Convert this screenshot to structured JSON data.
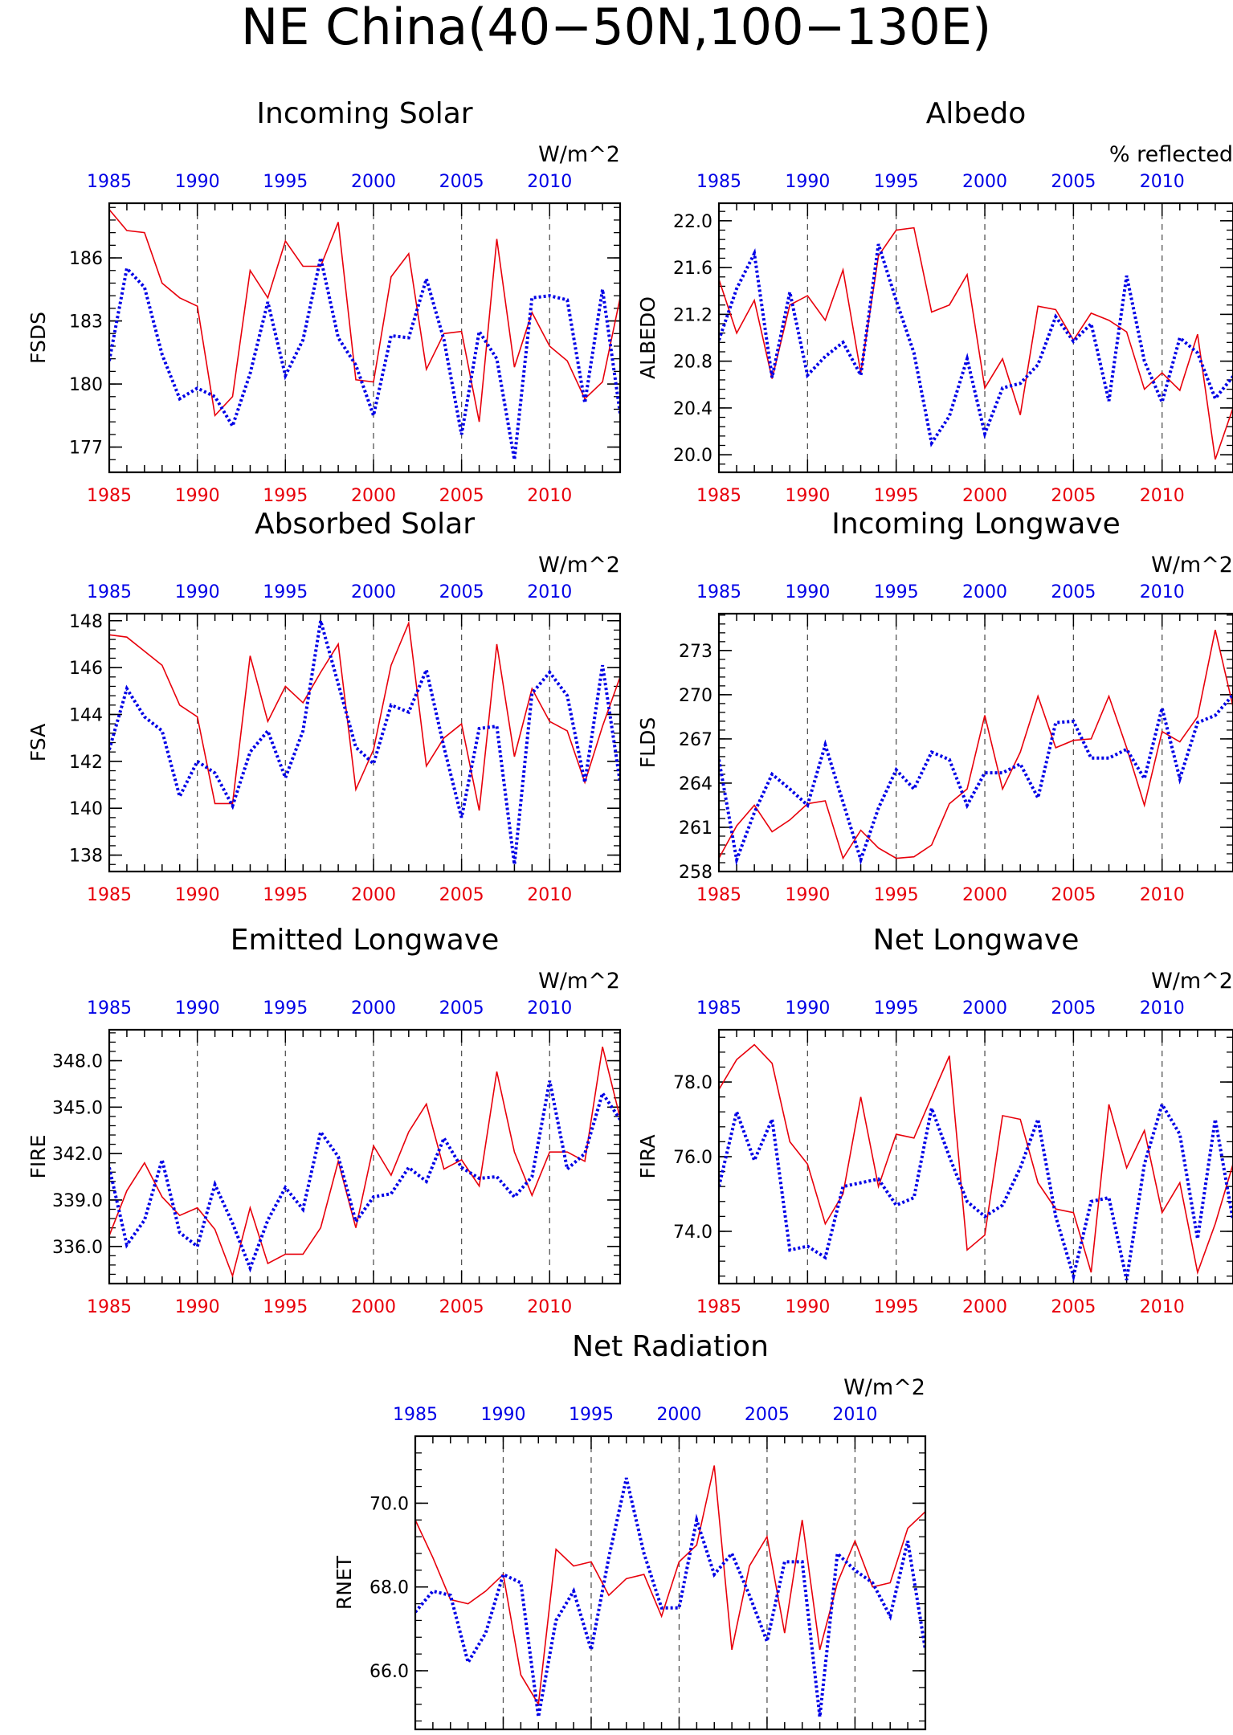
{
  "figure": {
    "title": "NE China(40−50N,100−130E)"
  },
  "colors": {
    "red_series": "#e8000b",
    "blue_series": "#0000e6",
    "axis": "#000000"
  },
  "chart_data": [
    {
      "type": "line",
      "title": "Incoming Solar",
      "ylabel": "FSDS",
      "units": "W/m^2",
      "ylim": [
        175.8,
        188.6
      ],
      "yticks": [
        177,
        180,
        183,
        186
      ],
      "ytick_labels": [
        "177",
        "180",
        "183",
        "186"
      ],
      "xlim": [
        1985,
        2014
      ],
      "xticks": [
        1985,
        1990,
        1995,
        2000,
        2005,
        2010
      ],
      "xtick_labels": [
        "1985",
        "1990",
        "1995",
        "2000",
        "2005",
        "2010"
      ],
      "grid": "vertical dashed at 5-year ticks",
      "x": [
        1985,
        1986,
        1987,
        1988,
        1989,
        1990,
        1991,
        1992,
        1993,
        1994,
        1995,
        1996,
        1997,
        1998,
        1999,
        2000,
        2001,
        2002,
        2003,
        2004,
        2005,
        2006,
        2007,
        2008,
        2009,
        2010,
        2011,
        2012,
        2013,
        2014
      ],
      "series": [
        {
          "values": [
            188.3,
            187.3,
            187.2,
            184.8,
            184.1,
            183.7,
            178.5,
            179.4,
            185.4,
            184.1,
            186.8,
            185.6,
            185.6,
            187.7,
            180.2,
            180.1,
            185.1,
            186.2,
            180.7,
            182.4,
            182.5,
            178.2,
            186.9,
            180.8,
            183.4,
            181.8,
            181.1,
            179.3,
            180.1,
            184.1
          ]
        },
        {
          "values": [
            181.1,
            185.5,
            184.6,
            181.4,
            179.3,
            179.8,
            179.4,
            178.0,
            180.5,
            183.9,
            180.4,
            182.1,
            186.0,
            182.2,
            180.9,
            178.5,
            182.3,
            182.2,
            185.0,
            182.1,
            177.6,
            182.5,
            181.2,
            176.4,
            184.1,
            184.2,
            184.0,
            179.1,
            184.5,
            178.6
          ]
        }
      ]
    },
    {
      "type": "line",
      "title": "Albedo",
      "ylabel": "ALBEDO",
      "units": "% reflected",
      "ylim": [
        19.85,
        22.15
      ],
      "yticks": [
        20.0,
        20.4,
        20.8,
        21.2,
        21.6,
        22.0
      ],
      "ytick_labels": [
        "20.0",
        "20.4",
        "20.8",
        "21.2",
        "21.6",
        "22.0"
      ],
      "xlim": [
        1985,
        2014
      ],
      "xticks": [
        1985,
        1990,
        1995,
        2000,
        2005,
        2010
      ],
      "xtick_labels": [
        "1985",
        "1990",
        "1995",
        "2000",
        "2005",
        "2010"
      ],
      "grid": "vertical dashed at 5-year ticks",
      "x": [
        1985,
        1986,
        1987,
        1988,
        1989,
        1990,
        1991,
        1992,
        1993,
        1994,
        1995,
        1996,
        1997,
        1998,
        1999,
        2000,
        2001,
        2002,
        2003,
        2004,
        2005,
        2006,
        2007,
        2008,
        2009,
        2010,
        2011,
        2012,
        2013,
        2014
      ],
      "series": [
        {
          "values": [
            21.5,
            21.04,
            21.32,
            20.65,
            21.28,
            21.36,
            21.15,
            21.58,
            20.7,
            21.7,
            21.92,
            21.94,
            21.22,
            21.28,
            21.54,
            20.57,
            20.82,
            20.34,
            21.27,
            21.24,
            20.98,
            21.21,
            21.15,
            21.05,
            20.56,
            20.7,
            20.55,
            21.03,
            19.96,
            20.4
          ]
        },
        {
          "values": [
            20.98,
            21.42,
            21.72,
            20.66,
            21.39,
            20.68,
            20.84,
            20.96,
            20.68,
            21.8,
            21.32,
            20.87,
            20.1,
            20.33,
            20.82,
            20.18,
            20.57,
            20.61,
            20.77,
            21.18,
            20.97,
            21.12,
            20.46,
            21.53,
            20.8,
            20.45,
            21.0,
            20.87,
            20.48,
            20.67
          ]
        }
      ]
    },
    {
      "type": "line",
      "title": "Absorbed Solar",
      "ylabel": "FSA",
      "units": "W/m^2",
      "ylim": [
        137.3,
        148.3
      ],
      "yticks": [
        138,
        140,
        142,
        144,
        146,
        148
      ],
      "ytick_labels": [
        "138",
        "140",
        "142",
        "144",
        "146",
        "148"
      ],
      "xlim": [
        1985,
        2014
      ],
      "xticks": [
        1985,
        1990,
        1995,
        2000,
        2005,
        2010
      ],
      "xtick_labels": [
        "1985",
        "1990",
        "1995",
        "2000",
        "2005",
        "2010"
      ],
      "grid": "vertical dashed at 5-year ticks",
      "x": [
        1985,
        1986,
        1987,
        1988,
        1989,
        1990,
        1991,
        1992,
        1993,
        1994,
        1995,
        1996,
        1997,
        1998,
        1999,
        2000,
        2001,
        2002,
        2003,
        2004,
        2005,
        2006,
        2007,
        2008,
        2009,
        2010,
        2011,
        2012,
        2013,
        2014
      ],
      "series": [
        {
          "values": [
            147.4,
            147.3,
            146.7,
            146.1,
            144.4,
            143.9,
            140.2,
            140.2,
            146.5,
            143.7,
            145.2,
            144.5,
            145.8,
            147.0,
            140.8,
            142.5,
            146.1,
            147.9,
            141.8,
            143.0,
            143.6,
            139.9,
            147.0,
            142.2,
            145.1,
            143.7,
            143.3,
            141.1,
            143.5,
            145.6
          ]
        },
        {
          "values": [
            142.5,
            145.1,
            143.9,
            143.3,
            140.5,
            142.0,
            141.5,
            140.1,
            142.4,
            143.3,
            141.3,
            143.3,
            148.0,
            145.3,
            142.6,
            141.9,
            144.4,
            144.1,
            145.9,
            142.6,
            139.6,
            143.4,
            143.5,
            137.6,
            144.9,
            145.8,
            144.8,
            141.1,
            146.1,
            141.1
          ]
        }
      ]
    },
    {
      "type": "line",
      "title": "Incoming Longwave",
      "ylabel": "FLDS",
      "units": "W/m^2",
      "ylim": [
        258,
        275.5
      ],
      "yticks": [
        258,
        261,
        264,
        267,
        270,
        273
      ],
      "ytick_labels": [
        "258",
        "261",
        "264",
        "267",
        "270",
        "273"
      ],
      "xlim": [
        1985,
        2014
      ],
      "xticks": [
        1985,
        1990,
        1995,
        2000,
        2005,
        2010
      ],
      "xtick_labels": [
        "1985",
        "1990",
        "1995",
        "2000",
        "2005",
        "2010"
      ],
      "grid": "vertical dashed at 5-year ticks",
      "x": [
        1985,
        1986,
        1987,
        1988,
        1989,
        1990,
        1991,
        1992,
        1993,
        1994,
        1995,
        1996,
        1997,
        1998,
        1999,
        2000,
        2001,
        2002,
        2003,
        2004,
        2005,
        2006,
        2007,
        2008,
        2009,
        2010,
        2011,
        2012,
        2013,
        2014
      ],
      "series": [
        {
          "values": [
            258.9,
            261.1,
            262.5,
            260.7,
            261.5,
            262.6,
            262.8,
            258.9,
            260.8,
            259.6,
            258.9,
            259.0,
            259.8,
            262.6,
            263.6,
            268.6,
            263.6,
            266.1,
            269.9,
            266.4,
            266.9,
            267.0,
            269.9,
            266.4,
            262.5,
            267.5,
            266.8,
            268.5,
            274.4,
            269.2
          ]
        },
        {
          "values": [
            265.6,
            258.8,
            262.0,
            264.6,
            263.6,
            262.5,
            266.6,
            262.7,
            258.8,
            262.3,
            264.9,
            263.6,
            266.1,
            265.6,
            262.5,
            264.7,
            264.7,
            265.3,
            263.0,
            268.1,
            268.2,
            265.7,
            265.7,
            266.3,
            264.3,
            269.1,
            264.3,
            268.1,
            268.6,
            270.0
          ]
        }
      ]
    },
    {
      "type": "line",
      "title": "Emitted Longwave",
      "ylabel": "FIRE",
      "units": "W/m^2",
      "ylim": [
        333.6,
        350
      ],
      "yticks": [
        336.0,
        339.0,
        342.0,
        345.0,
        348.0
      ],
      "ytick_labels": [
        "336.0",
        "339.0",
        "342.0",
        "345.0",
        "348.0"
      ],
      "xlim": [
        1985,
        2014
      ],
      "xticks": [
        1985,
        1990,
        1995,
        2000,
        2005,
        2010
      ],
      "xtick_labels": [
        "1985",
        "1990",
        "1995",
        "2000",
        "2005",
        "2010"
      ],
      "grid": "vertical dashed at 5-year ticks",
      "x": [
        1985,
        1986,
        1987,
        1988,
        1989,
        1990,
        1991,
        1992,
        1993,
        1994,
        1995,
        1996,
        1997,
        1998,
        1999,
        2000,
        2001,
        2002,
        2003,
        2004,
        2005,
        2006,
        2007,
        2008,
        2009,
        2010,
        2011,
        2012,
        2013,
        2014
      ],
      "series": [
        {
          "values": [
            336.7,
            339.6,
            341.4,
            339.2,
            338.0,
            338.5,
            337.1,
            334.1,
            338.5,
            334.9,
            335.5,
            335.5,
            337.2,
            341.5,
            337.2,
            342.5,
            340.6,
            343.4,
            345.2,
            341.0,
            341.6,
            339.9,
            347.3,
            342.1,
            339.3,
            342.1,
            342.1,
            341.5,
            348.9,
            344.3
          ]
        },
        {
          "values": [
            341.1,
            336.1,
            337.7,
            341.6,
            336.9,
            336.0,
            340.0,
            337.5,
            334.6,
            337.7,
            339.8,
            338.4,
            343.4,
            341.8,
            337.6,
            339.2,
            339.4,
            341.1,
            340.2,
            343.0,
            341.1,
            340.4,
            340.5,
            339.2,
            340.5,
            346.7,
            341.0,
            342.0,
            345.9,
            344.2
          ]
        }
      ]
    },
    {
      "type": "line",
      "title": "Net Longwave",
      "ylabel": "FIRA",
      "units": "W/m^2",
      "ylim": [
        72.6,
        79.4
      ],
      "yticks": [
        74.0,
        76.0,
        78.0
      ],
      "ytick_labels": [
        "74.0",
        "76.0",
        "78.0"
      ],
      "xlim": [
        1985,
        2014
      ],
      "xticks": [
        1985,
        1990,
        1995,
        2000,
        2005,
        2010
      ],
      "xtick_labels": [
        "1985",
        "1990",
        "1995",
        "2000",
        "2005",
        "2010"
      ],
      "grid": "vertical dashed at 5-year ticks",
      "x": [
        1985,
        1986,
        1987,
        1988,
        1989,
        1990,
        1991,
        1992,
        1993,
        1994,
        1995,
        1996,
        1997,
        1998,
        1999,
        2000,
        2001,
        2002,
        2003,
        2004,
        2005,
        2006,
        2007,
        2008,
        2009,
        2010,
        2011,
        2012,
        2013,
        2014
      ],
      "series": [
        {
          "values": [
            77.8,
            78.6,
            79.0,
            78.5,
            76.4,
            75.8,
            74.2,
            75.0,
            77.6,
            75.2,
            76.6,
            76.5,
            77.6,
            78.7,
            73.5,
            73.9,
            77.1,
            77.0,
            75.3,
            74.6,
            74.5,
            72.9,
            77.4,
            75.7,
            76.7,
            74.5,
            75.3,
            72.9,
            74.2,
            75.8
          ]
        },
        {
          "values": [
            75.2,
            77.2,
            75.9,
            77.0,
            73.5,
            73.6,
            73.3,
            75.2,
            75.3,
            75.4,
            74.7,
            74.9,
            77.3,
            76.0,
            74.8,
            74.4,
            74.7,
            75.7,
            77.0,
            74.4,
            72.8,
            74.8,
            74.9,
            72.7,
            75.8,
            77.4,
            76.6,
            73.8,
            77.0,
            74.3
          ]
        }
      ]
    },
    {
      "type": "line",
      "title": "Net Radiation",
      "ylabel": "RNET",
      "units": "W/m^2",
      "ylim": [
        64.6,
        71.6
      ],
      "yticks": [
        66.0,
        68.0,
        70.0
      ],
      "ytick_labels": [
        "66.0",
        "68.0",
        "70.0"
      ],
      "xlim": [
        1985,
        2014
      ],
      "xticks": [
        1985,
        1990,
        1995,
        2000,
        2005,
        2010
      ],
      "xtick_labels": [
        "1985",
        "1990",
        "1995",
        "2000",
        "2005",
        "2010"
      ],
      "grid": "vertical dashed at 5-year ticks",
      "x": [
        1985,
        1986,
        1987,
        1988,
        1989,
        1990,
        1991,
        1992,
        1993,
        1994,
        1995,
        1996,
        1997,
        1998,
        1999,
        2000,
        2001,
        2002,
        2003,
        2004,
        2005,
        2006,
        2007,
        2008,
        2009,
        2010,
        2011,
        2012,
        2013,
        2014
      ],
      "series": [
        {
          "values": [
            69.6,
            68.7,
            67.7,
            67.6,
            67.9,
            68.3,
            65.9,
            65.2,
            68.9,
            68.5,
            68.6,
            67.8,
            68.2,
            68.3,
            67.3,
            68.6,
            69.0,
            70.9,
            66.5,
            68.5,
            69.2,
            66.9,
            69.6,
            66.5,
            68.1,
            69.1,
            68.0,
            68.1,
            69.4,
            69.8
          ]
        },
        {
          "values": [
            67.4,
            67.9,
            67.8,
            66.2,
            66.9,
            68.3,
            68.1,
            64.9,
            67.2,
            67.9,
            66.5,
            68.7,
            70.6,
            68.8,
            67.5,
            67.5,
            69.6,
            68.3,
            68.8,
            67.8,
            66.7,
            68.6,
            68.6,
            64.9,
            68.8,
            68.4,
            68.1,
            67.3,
            69.1,
            66.5
          ]
        }
      ]
    }
  ]
}
